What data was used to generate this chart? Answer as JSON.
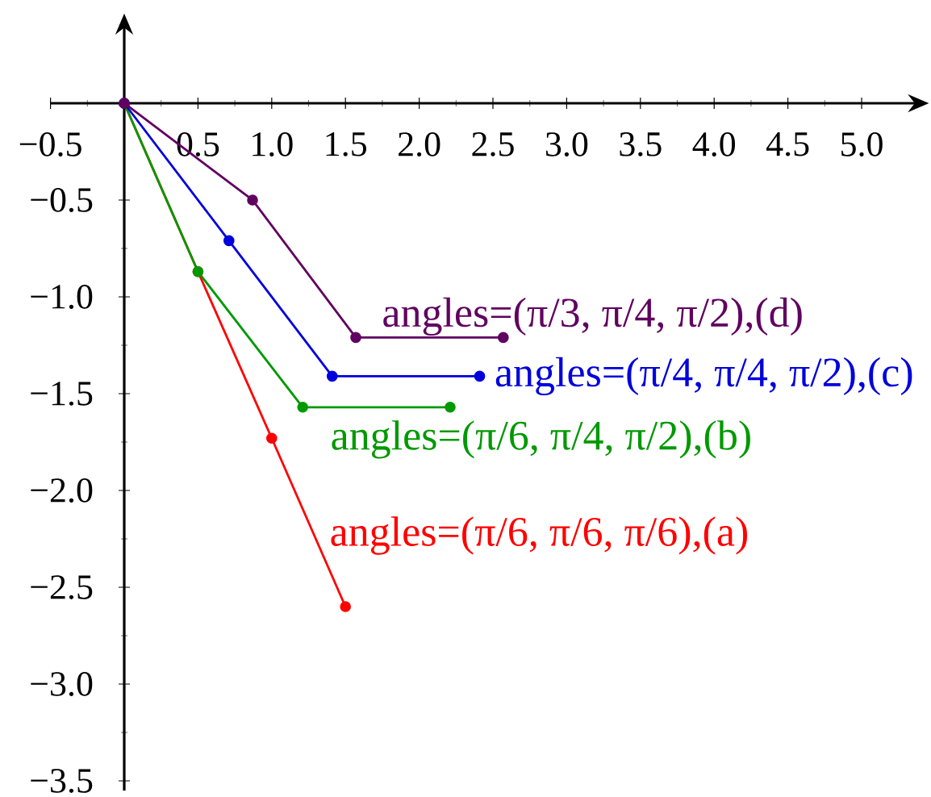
{
  "chart_data": {
    "type": "line",
    "series": [
      {
        "name": "angles=(π/6, π/6, π/6),(a)",
        "color": "#ff0000",
        "x": [
          0,
          0.5,
          1,
          1.5
        ],
        "values": [
          0,
          -0.87,
          -1.73,
          -2.6
        ]
      },
      {
        "name": "angles=(π/6, π/4, π/2),(b)",
        "color": "#009900",
        "x": [
          0,
          0.5,
          1.21,
          2.21
        ],
        "values": [
          0,
          -0.87,
          -1.57,
          -1.57
        ]
      },
      {
        "name": "angles=(π/4, π/4, π/2),(c)",
        "color": "#0000dd",
        "x": [
          0,
          0.71,
          1.41,
          2.41
        ],
        "values": [
          0,
          -0.71,
          -1.41,
          -1.41
        ]
      },
      {
        "name": "angles=(π/3, π/4, π/2),(d)",
        "color": "#600060",
        "x": [
          0,
          0.87,
          1.57,
          2.57
        ],
        "values": [
          0,
          -0.5,
          -1.21,
          -1.21
        ]
      }
    ],
    "xlim": [
      -0.5,
      5.36
    ],
    "ylim": [
      -3.55,
      0.39
    ],
    "xticks": [
      {
        "value": -0.5,
        "label": "−0.5"
      },
      {
        "value": 0.5,
        "label": "0.5"
      },
      {
        "value": 1,
        "label": "1.0"
      },
      {
        "value": 1.5,
        "label": "1.5"
      },
      {
        "value": 2,
        "label": "2.0"
      },
      {
        "value": 2.5,
        "label": "2.5"
      },
      {
        "value": 3,
        "label": "3.0"
      },
      {
        "value": 3.5,
        "label": "3.5"
      },
      {
        "value": 4,
        "label": "4.0"
      },
      {
        "value": 4.5,
        "label": "4.5"
      },
      {
        "value": 5,
        "label": "5.0"
      }
    ],
    "yticks": [
      {
        "value": -0.5,
        "label": "−0.5"
      },
      {
        "value": -1,
        "label": "−1.0"
      },
      {
        "value": -1.5,
        "label": "−1.5"
      },
      {
        "value": -2,
        "label": "−2.0"
      },
      {
        "value": -2.5,
        "label": "−2.5"
      },
      {
        "value": -3,
        "label": "−3.0"
      },
      {
        "value": -3.5,
        "label": "−3.5"
      }
    ],
    "marker": "circle",
    "line_style": "solid"
  }
}
